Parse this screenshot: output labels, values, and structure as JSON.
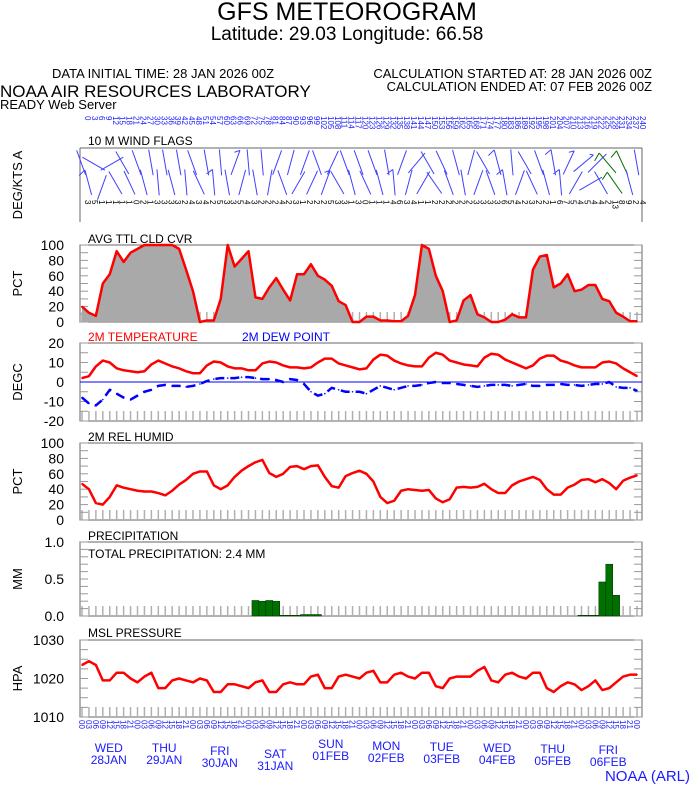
{
  "header": {
    "title": "GFS METEOROGRAM",
    "subtitle": "Latitude: 29.03 Longitude:  66.58",
    "data_initial_time": "DATA INITIAL TIME: 28 JAN 2026 00Z",
    "calc_started": "CALCULATION STARTED AT: 28 JAN 2026 00Z",
    "calc_ended": "CALCULATION ENDED AT: 07 FEB 2026 00Z",
    "lab": "NOAA AIR RESOURCES LABORATORY",
    "server": "READY Web Server"
  },
  "footer": "NOAA (ARL)",
  "colors": {
    "line": "#ff0000",
    "dew": "#0000ff",
    "cloud_fill": "#a9a9a9",
    "precip": "#007000",
    "axis_text": "#1a1aff",
    "grey_tick": "#b0b0b0"
  },
  "days": [
    {
      "dow": "WED",
      "date": "28JAN"
    },
    {
      "dow": "THU",
      "date": "29JAN"
    },
    {
      "dow": "FRI",
      "date": "30JAN"
    },
    {
      "dow": "SAT",
      "date": "31JAN"
    },
    {
      "dow": "SUN",
      "date": "01FEB"
    },
    {
      "dow": "MON",
      "date": "02FEB"
    },
    {
      "dow": "TUE",
      "date": "03FEB"
    },
    {
      "dow": "WED",
      "date": "04FEB"
    },
    {
      "dow": "THU",
      "date": "05FEB"
    },
    {
      "dow": "FRI",
      "date": "06FEB"
    }
  ],
  "chart_data": [
    {
      "type": "wind_barbs",
      "title": "10 M  WIND FLAGS",
      "ylabel": "DEG/KTS  A",
      "forecast_hours_step": 3,
      "speed_kts": [
        3,
        5,
        1,
        1,
        1,
        1,
        1,
        0,
        2,
        1,
        3,
        3,
        3,
        3,
        2,
        4,
        3,
        4,
        2,
        5,
        3,
        3,
        5,
        4,
        3,
        2,
        2,
        2,
        4,
        2,
        3,
        1,
        2,
        2,
        2,
        5,
        3,
        3,
        1,
        3,
        0,
        1,
        1,
        1,
        4,
        6,
        3,
        4,
        1,
        1,
        2,
        2,
        2,
        2,
        2,
        2,
        3,
        3,
        3,
        3,
        6,
        5,
        4,
        2,
        3,
        2,
        2,
        1,
        6,
        7,
        5,
        4,
        5,
        4,
        4,
        2,
        13,
        8,
        9,
        2,
        4
      ],
      "direction_deg": [
        340,
        345,
        300,
        200,
        60,
        330,
        330,
        335,
        340,
        345,
        350,
        355,
        350,
        345,
        350,
        355,
        340,
        335,
        350,
        355,
        355,
        350,
        20,
        15,
        355,
        350,
        355,
        10,
        20,
        340,
        15,
        30,
        20,
        25,
        340,
        20,
        25,
        330,
        340,
        345,
        340,
        335,
        340,
        345,
        350,
        355,
        20,
        15,
        40,
        30,
        330,
        325,
        335,
        340,
        345,
        350,
        15,
        20,
        330,
        340,
        345,
        350,
        355,
        20,
        330,
        335,
        340,
        345,
        350,
        355,
        25,
        30,
        50,
        60,
        45,
        330,
        320,
        325,
        335,
        345,
        350
      ]
    },
    {
      "type": "area",
      "title": "AVG TTL CLD CVR",
      "ylabel": "PCT",
      "ylim": [
        0,
        100
      ],
      "yticks": [
        0,
        20,
        40,
        60,
        80,
        100
      ],
      "values": [
        20,
        12,
        8,
        50,
        62,
        92,
        78,
        90,
        95,
        100,
        100,
        100,
        100,
        100,
        95,
        68,
        40,
        0,
        2,
        2,
        30,
        100,
        72,
        82,
        92,
        32,
        30,
        45,
        57,
        42,
        28,
        62,
        62,
        75,
        60,
        55,
        47,
        27,
        22,
        0,
        0,
        7,
        7,
        2,
        2,
        1,
        1,
        8,
        35,
        100,
        95,
        60,
        40,
        0,
        2,
        28,
        35,
        10,
        6,
        0,
        0,
        3,
        10,
        6,
        6,
        68,
        85,
        87,
        45,
        50,
        62,
        40,
        42,
        48,
        48,
        30,
        27,
        12,
        7,
        1,
        1
      ]
    },
    {
      "type": "line",
      "ylabel": "DEGC",
      "ylim": [
        -20,
        20
      ],
      "yticks": [
        -20,
        -10,
        0,
        10,
        20
      ],
      "series": [
        {
          "name": "2M TEMPERATURE",
          "values": [
            2,
            3,
            8,
            11,
            10,
            7,
            6,
            5.5,
            5,
            5.5,
            9,
            11,
            9.5,
            8,
            7,
            5.5,
            4.5,
            4.5,
            8.5,
            10.5,
            10,
            8,
            7,
            7,
            6,
            6,
            9.5,
            10.5,
            10,
            8.5,
            7.5,
            7.5,
            7,
            7.5,
            10,
            12,
            12,
            9.5,
            8.5,
            7.5,
            6.5,
            7,
            11.5,
            14,
            13.5,
            11,
            9.5,
            8.5,
            8,
            8,
            12.5,
            15,
            14,
            11,
            10,
            9,
            8.5,
            8,
            12.5,
            14.5,
            14,
            11.5,
            10,
            8.5,
            7,
            8.5,
            12,
            13.5,
            13.5,
            11,
            10,
            8.5,
            7.5,
            7.5,
            7.5,
            10,
            10.5,
            9.5,
            7,
            5,
            3
          ]
        },
        {
          "name": "2M   DEW POINT",
          "values": [
            -8,
            -11,
            -12,
            -9,
            -4,
            -6,
            -8,
            -9,
            -7,
            -5,
            -4,
            -2,
            -1.5,
            -2,
            -2,
            -2.5,
            -2,
            -1,
            0.5,
            1.5,
            2,
            2,
            2,
            2.5,
            2.5,
            2,
            1.5,
            1.5,
            1,
            0,
            1.5,
            1,
            -1,
            -5,
            -7,
            -6,
            -3,
            -4,
            -5,
            -5,
            -5,
            -6,
            -4,
            -2,
            -3,
            -4,
            -3,
            -2,
            -2,
            -1.5,
            -0.5,
            0,
            -0.5,
            -0.5,
            -1,
            -1.5,
            -2,
            -2.5,
            -2,
            -1.5,
            -1.5,
            -1.5,
            -2,
            -1.5,
            -1,
            -2,
            -2,
            -1.5,
            -1.5,
            -1,
            -1.5,
            -1.5,
            -2,
            -1.5,
            -1,
            -1,
            0,
            -2.5,
            -3,
            -3,
            -4.5
          ]
        }
      ]
    },
    {
      "type": "line",
      "title": "2M REL HUMID",
      "ylabel": "PCT",
      "ylim": [
        0,
        100
      ],
      "yticks": [
        0,
        20,
        40,
        60,
        80,
        100
      ],
      "values": [
        47,
        40,
        22,
        20,
        30,
        45,
        42,
        40,
        38,
        37,
        37,
        35,
        32,
        38,
        46,
        52,
        60,
        63,
        63,
        45,
        40,
        45,
        56,
        64,
        70,
        75,
        78,
        61,
        56,
        60,
        69,
        70,
        66,
        70,
        71,
        56,
        44,
        42,
        57,
        61,
        64,
        60,
        50,
        30,
        22,
        25,
        38,
        40,
        39,
        38,
        39,
        28,
        23,
        27,
        42,
        43,
        42,
        43,
        47,
        40,
        35,
        35,
        45,
        50,
        53,
        56,
        52,
        40,
        33,
        33,
        42,
        46,
        52,
        53,
        49,
        53,
        48,
        40,
        51,
        55,
        58
      ]
    },
    {
      "type": "bar",
      "title": "PRECIPITATION",
      "annotation": "TOTAL PRECIPITATION:   2.4 MM",
      "ylabel": "MM",
      "ylim": [
        0,
        1.0
      ],
      "yticks": [
        "0.0",
        "0.5",
        "1.0"
      ],
      "values": [
        0,
        0,
        0,
        0,
        0,
        0,
        0,
        0,
        0,
        0,
        0,
        0,
        0,
        0,
        0,
        0,
        0,
        0,
        0,
        0,
        0,
        0,
        0,
        0,
        0,
        0.21,
        0.2,
        0.21,
        0.2,
        0.01,
        0.01,
        0.01,
        0.02,
        0.02,
        0.02,
        0,
        0,
        0,
        0,
        0,
        0,
        0,
        0,
        0,
        0,
        0,
        0,
        0,
        0,
        0,
        0,
        0,
        0,
        0,
        0,
        0,
        0,
        0,
        0,
        0,
        0,
        0,
        0,
        0,
        0,
        0,
        0,
        0,
        0,
        0,
        0,
        0,
        0.01,
        0.01,
        0.01,
        0.46,
        0.7,
        0.28,
        0,
        0,
        0
      ]
    },
    {
      "type": "line",
      "title": "MSL PRESSURE",
      "ylabel": "HPA",
      "ylim": [
        1010,
        1030
      ],
      "yticks": [
        1010,
        1020,
        1030
      ],
      "values": [
        1023.5,
        1024.5,
        1023.5,
        1019.5,
        1019.5,
        1021.5,
        1021.5,
        1020,
        1019,
        1020.5,
        1021.5,
        1017.5,
        1017.5,
        1019.5,
        1020,
        1019.5,
        1019,
        1020,
        1019.5,
        1016.5,
        1016.5,
        1018.5,
        1018.5,
        1018,
        1017.5,
        1019,
        1019.5,
        1016.5,
        1016.5,
        1018.5,
        1019,
        1018.5,
        1018.5,
        1020.5,
        1021,
        1017.5,
        1017.5,
        1020.5,
        1021,
        1020.5,
        1020,
        1021.5,
        1022,
        1019,
        1019,
        1021,
        1021.5,
        1020.5,
        1020,
        1021.5,
        1021.5,
        1018,
        1017.5,
        1020,
        1020.5,
        1020.5,
        1020.5,
        1022,
        1023,
        1019.5,
        1019,
        1021,
        1021.5,
        1020.5,
        1020,
        1021.5,
        1021.5,
        1017.5,
        1016.5,
        1018,
        1019,
        1018.5,
        1017,
        1018,
        1019.5,
        1017,
        1017.5,
        1019,
        1020.5,
        1021,
        1021
      ]
    }
  ]
}
